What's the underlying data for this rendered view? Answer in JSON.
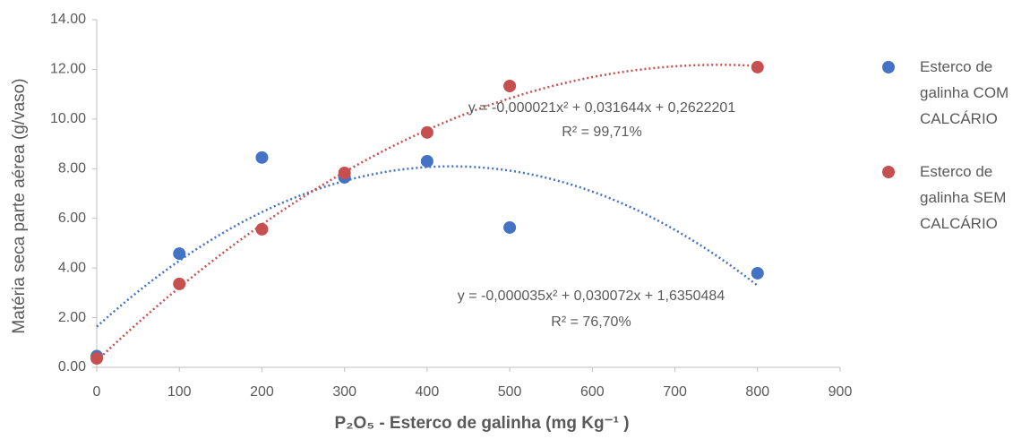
{
  "chart_data": {
    "type": "scatter",
    "x_label": "P₂O₅ - Esterco de galinha (mg Kg⁻¹ )",
    "y_label": "Matéria seca parte aérea (g/vaso)",
    "xlim": [
      0,
      900
    ],
    "xticks": [
      0,
      100,
      200,
      300,
      400,
      500,
      600,
      700,
      800,
      900
    ],
    "ylim": [
      0,
      14
    ],
    "yticks": [
      {
        "value": 0,
        "label": "0.00"
      },
      {
        "value": 2,
        "label": "2.00"
      },
      {
        "value": 4,
        "label": "4.00"
      },
      {
        "value": 6,
        "label": "6.00"
      },
      {
        "value": 8,
        "label": "8.00"
      },
      {
        "value": 10,
        "label": "10.00"
      },
      {
        "value": 12,
        "label": "12.00"
      },
      {
        "value": 14,
        "label": "14.00"
      }
    ],
    "series": [
      {
        "name": "Esterco de galinha COM CALCÁRIO",
        "color": "#4472c4",
        "x": [
          0,
          100,
          200,
          300,
          400,
          500,
          800
        ],
        "values": [
          0.45,
          4.58,
          8.45,
          7.65,
          8.3,
          5.63,
          3.79
        ],
        "trendline": {
          "equation": "y = -0,000035x² + 0,030072x + 1,6350484",
          "r2": "R² = 76,70%",
          "coefficients": [
            -3.5e-05,
            0.030072,
            1.6350484
          ]
        }
      },
      {
        "name": "Esterco de galinha SEM CALCÁRIO",
        "color": "#c5504f",
        "x": [
          0,
          100,
          200,
          300,
          400,
          500,
          800
        ],
        "values": [
          0.36,
          3.36,
          5.56,
          7.83,
          9.46,
          11.33,
          12.09
        ],
        "trendline": {
          "equation": "y = -0,000021x² + 0,031644x + 0,2622201",
          "r2": "R² = 99,71%",
          "coefficients": [
            -2.1e-05,
            0.031644,
            0.2622201
          ]
        }
      }
    ]
  }
}
